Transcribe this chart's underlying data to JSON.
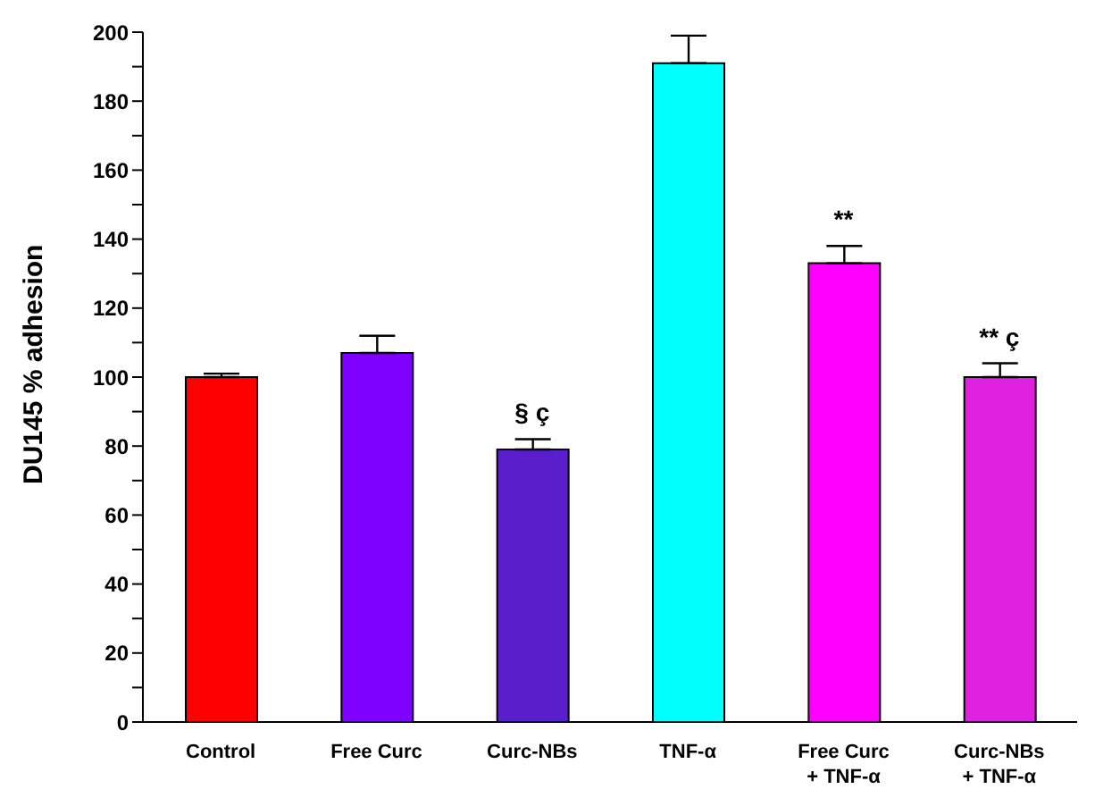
{
  "chart_data": {
    "type": "bar",
    "ylabel": "DU145 % adhesion",
    "categories": [
      "Control",
      "Free Curc",
      "Curc-NBs",
      "TNF-α",
      "Free Curc\n+ TNF-α",
      "Curc-NBs\n+ TNF-α"
    ],
    "values": [
      100,
      107,
      79,
      191,
      133,
      100
    ],
    "colors": [
      "#ff0000",
      "#7f00ff",
      "#5a1ecc",
      "#00ffff",
      "#ff00ff",
      "#e020e0"
    ],
    "errors": [
      [
        100,
        101
      ],
      [
        107,
        112
      ],
      [
        79,
        82
      ],
      [
        191,
        199
      ],
      [
        133,
        138
      ],
      [
        100,
        104
      ]
    ],
    "ylim": [
      0,
      200
    ],
    "yticks": [
      0,
      {
        "value": 10,
        "label": null
      },
      20,
      {
        "value": 30,
        "label": null
      },
      40,
      {
        "value": 50,
        "label": null
      },
      60,
      {
        "value": 70,
        "label": null
      },
      80,
      {
        "value": 90,
        "label": null
      },
      100,
      {
        "value": 110,
        "label": null
      },
      120,
      {
        "value": 130,
        "label": null
      },
      140,
      {
        "value": 150,
        "label": null
      },
      160,
      {
        "value": 170,
        "label": null
      },
      180,
      {
        "value": 190,
        "label": null
      },
      200
    ],
    "annotations": [
      {
        "text": "§  ç",
        "x": "Curc-NBs",
        "y": 79
      },
      {
        "text": "**",
        "x": "Free Curc\n+ TNF-α",
        "y": 133
      },
      {
        "text": "**  ç",
        "x": "Curc-NBs\n+ TNF-α",
        "y": 100
      }
    ],
    "grid": false,
    "legend": false
  }
}
